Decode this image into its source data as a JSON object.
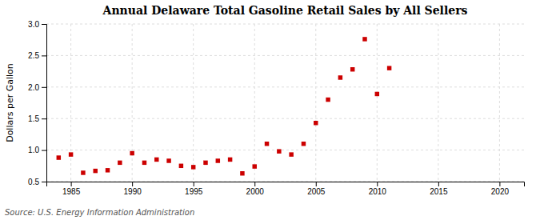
{
  "chart_data": {
    "type": "scatter",
    "title": "Annual Delaware Total Gasoline Retail Sales by All Sellers",
    "y_label": "Dollars per Gallon",
    "annotations": [
      "Source: U.S. Energy Information Administration"
    ],
    "x": [
      1984,
      1985,
      1986,
      1987,
      1988,
      1989,
      1990,
      1991,
      1992,
      1993,
      1994,
      1995,
      1996,
      1997,
      1998,
      1999,
      2000,
      2001,
      2002,
      2003,
      2004,
      2005,
      2006,
      2007,
      2008,
      2009,
      2010,
      2011
    ],
    "values": [
      0.88,
      0.93,
      0.64,
      0.67,
      0.68,
      0.8,
      0.95,
      0.8,
      0.85,
      0.83,
      0.75,
      0.73,
      0.8,
      0.83,
      0.85,
      0.63,
      0.74,
      1.1,
      0.98,
      0.93,
      1.1,
      1.43,
      1.8,
      2.15,
      2.28,
      2.76,
      1.89,
      2.3
    ],
    "color": "#cc0000",
    "marker": "square",
    "xlim": [
      1983,
      2022
    ],
    "xticks": [
      1985,
      1990,
      1995,
      2000,
      2005,
      2010,
      2015,
      2020
    ],
    "ylim": [
      0.5,
      3.0
    ],
    "yticks": [
      0.5,
      {
        "value": 1.0,
        "label": "1.0"
      },
      1.5,
      {
        "value": 2.0,
        "label": "2.0"
      },
      2.5,
      {
        "value": 3.0,
        "label": "3.0"
      }
    ],
    "grid": true
  }
}
